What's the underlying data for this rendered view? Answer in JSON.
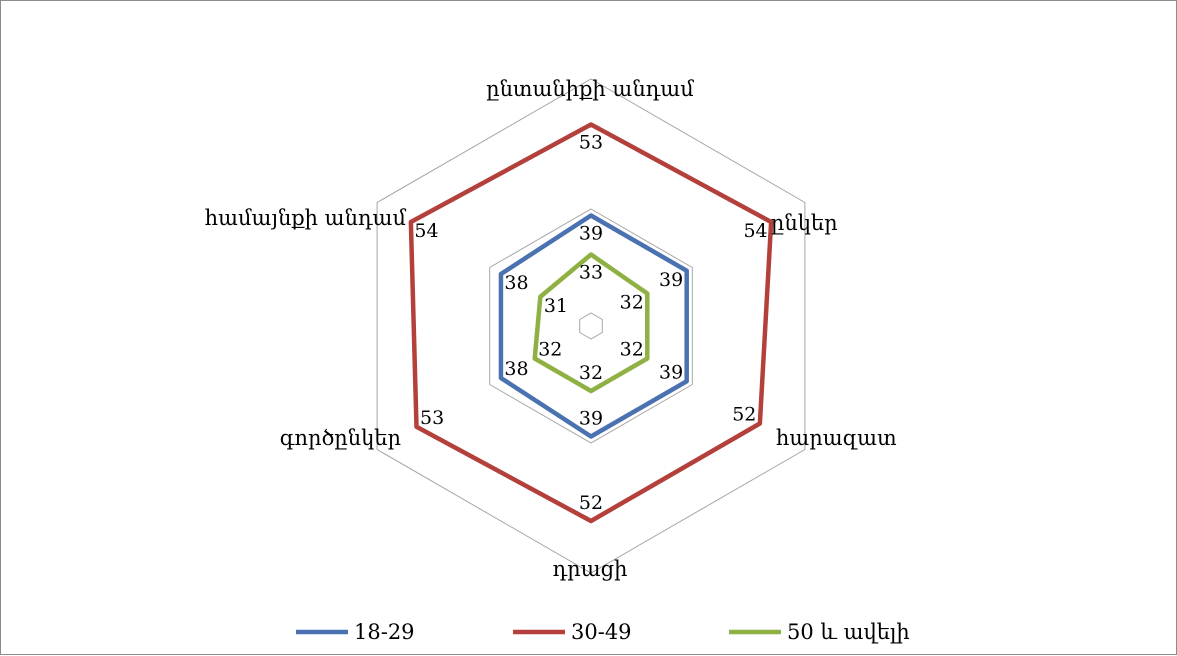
{
  "chart_data": {
    "type": "radar",
    "title": "",
    "categories": [
      "ընտանիքի անդամ",
      "ընկեր",
      "հարազատ",
      "դրացի",
      "գործընկեր",
      "համայնքի անդամ"
    ],
    "series": [
      {
        "name": "18-29",
        "color": "#4a72b0",
        "values": [
          39,
          39,
          39,
          39,
          38,
          38
        ]
      },
      {
        "name": "30-49",
        "color": "#b3403b",
        "values": [
          53,
          54,
          52,
          52,
          53,
          54
        ]
      },
      {
        "name": "50 և ավելի",
        "color": "#8fb043",
        "values": [
          33,
          32,
          32,
          32,
          32,
          31
        ]
      }
    ],
    "grid": true,
    "grid_shape": "hexagon",
    "axis_labels_shown": false,
    "legend_position": "bottom",
    "data_labels": true
  }
}
